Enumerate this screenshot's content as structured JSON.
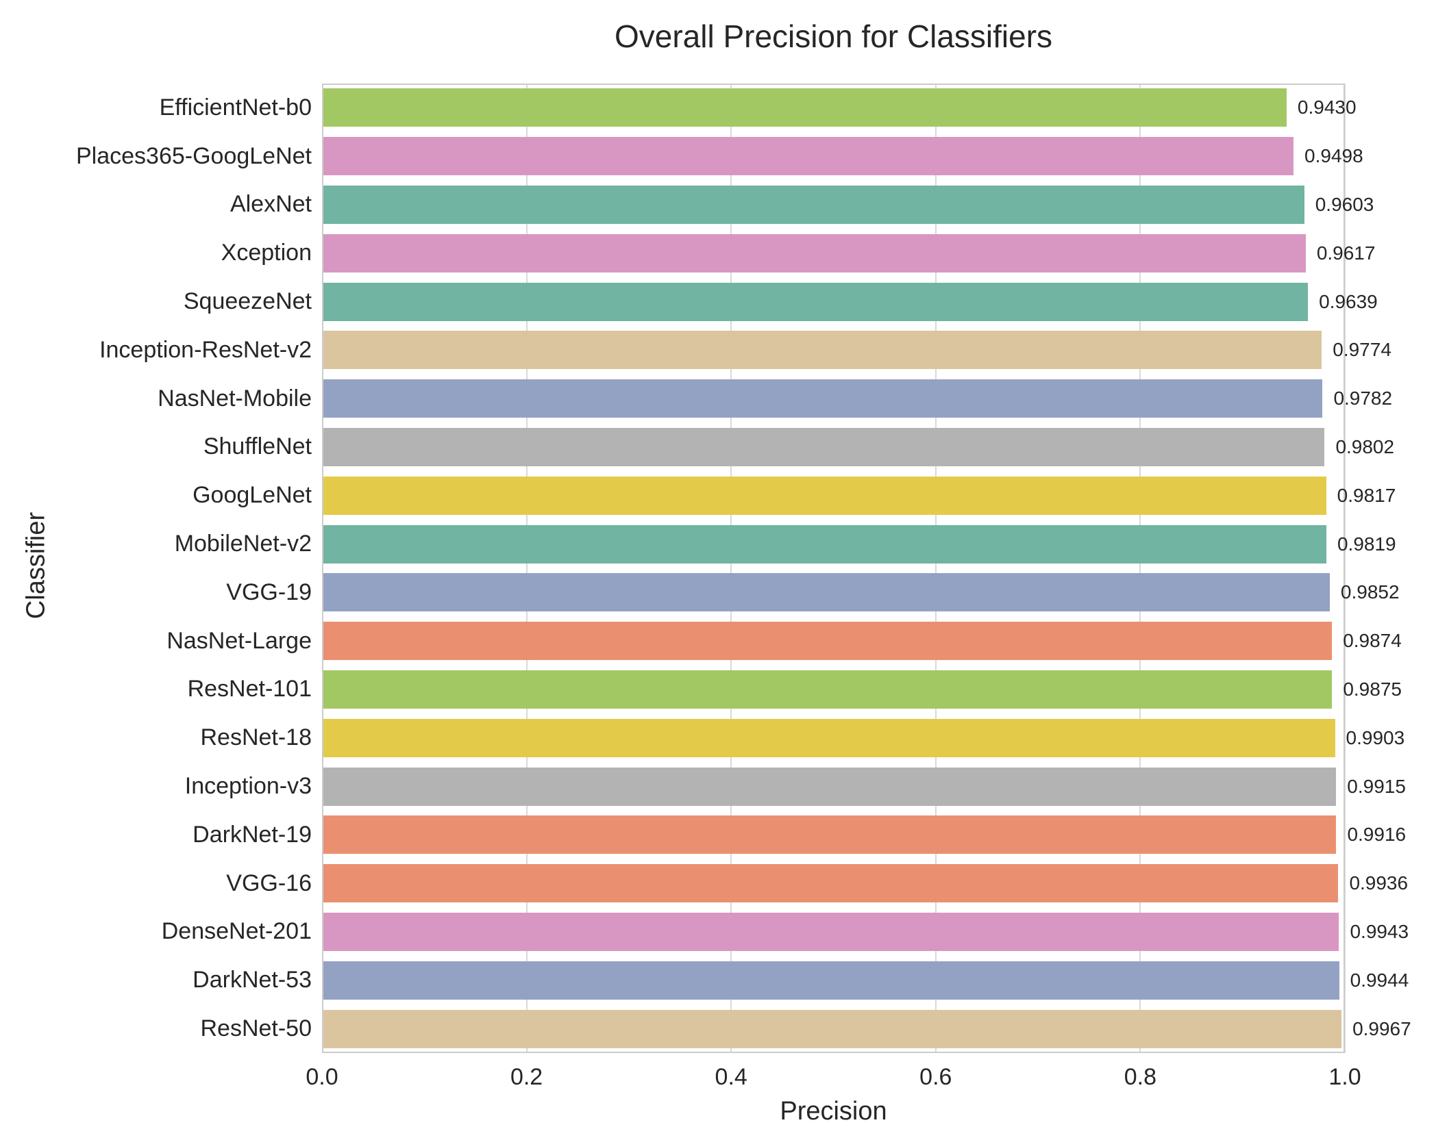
{
  "chart_data": {
    "type": "bar",
    "orientation": "horizontal",
    "title": "Overall Precision for Classifiers",
    "xlabel": "Precision",
    "ylabel": "Classifier",
    "xlim": [
      0.0,
      1.0
    ],
    "xtick_labels": [
      "0.0",
      "0.2",
      "0.4",
      "0.6",
      "0.8",
      "1.0"
    ],
    "grid": "vertical light-gray gridlines, drawn under bars",
    "legend": "none",
    "sort_order": "ascending by precision, top to bottom",
    "categories": [
      "EfficientNet-b0",
      "Places365-GoogLeNet",
      "AlexNet",
      "Xception",
      "SqueezeNet",
      "Inception-ResNet-v2",
      "NasNet-Mobile",
      "ShuffleNet",
      "GoogLeNet",
      "MobileNet-v2",
      "VGG-19",
      "NasNet-Large",
      "ResNet-101",
      "ResNet-18",
      "Inception-v3",
      "DarkNet-19",
      "VGG-16",
      "DenseNet-201",
      "DarkNet-53",
      "ResNet-50"
    ],
    "values": [
      0.943,
      0.9498,
      0.9603,
      0.9617,
      0.9639,
      0.9774,
      0.9782,
      0.9802,
      0.9817,
      0.9819,
      0.9852,
      0.9874,
      0.9875,
      0.9903,
      0.9915,
      0.9916,
      0.9936,
      0.9943,
      0.9944,
      0.9967
    ],
    "value_labels": [
      "0.9430",
      "0.9498",
      "0.9603",
      "0.9617",
      "0.9639",
      "0.9774",
      "0.9782",
      "0.9802",
      "0.9817",
      "0.9819",
      "0.9852",
      "0.9874",
      "0.9875",
      "0.9903",
      "0.9915",
      "0.9916",
      "0.9936",
      "0.9943",
      "0.9944",
      "0.9967"
    ],
    "bar_colors": [
      "#a2c863",
      "#d897c2",
      "#70b4a1",
      "#d897c2",
      "#70b4a1",
      "#dbc59e",
      "#93a2c3",
      "#b3b3b3",
      "#e4ca49",
      "#70b4a1",
      "#93a2c3",
      "#ea9070",
      "#a2c863",
      "#e4ca49",
      "#b3b3b3",
      "#ea9070",
      "#ea9070",
      "#d897c2",
      "#93a2c3",
      "#dbc59e"
    ],
    "palette": {
      "teal": "#70b4a1",
      "salmon": "#ea9070",
      "blue": "#93a2c3",
      "pink": "#d897c2",
      "green": "#a2c863",
      "yellow": "#e4ca49",
      "tan": "#dbc59e",
      "gray": "#b3b3b3",
      "gridline": "#d9d9d9",
      "spine": "#cccccc",
      "text": "#262626"
    }
  }
}
